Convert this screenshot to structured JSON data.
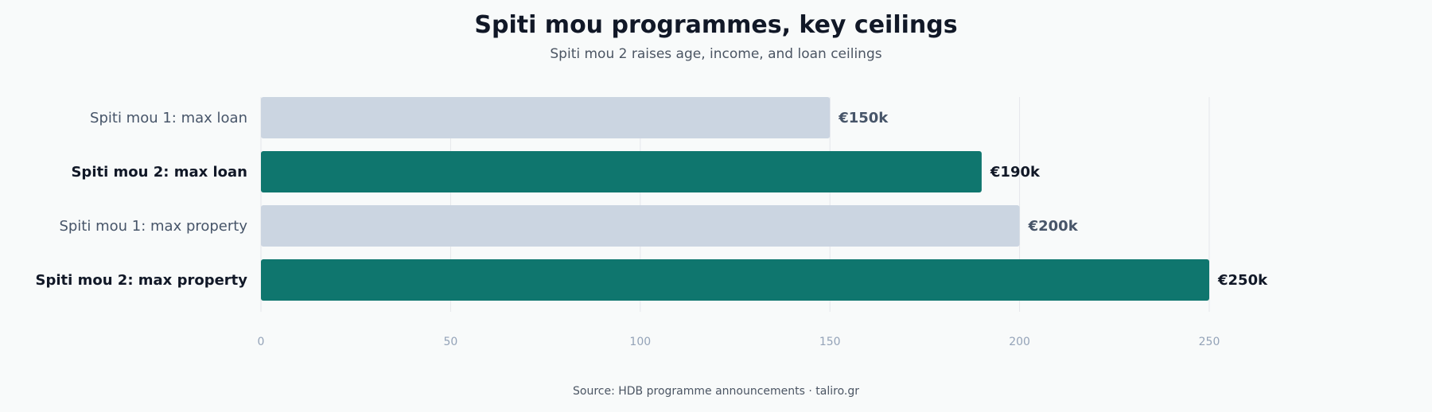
{
  "chart_data": {
    "type": "bar",
    "orientation": "horizontal",
    "title": "Spiti mou programmes, key ceilings",
    "subtitle": "Spiti mou 2 raises age, income, and loan ceilings",
    "source": "Source: HDB programme announcements · taliro.gr",
    "categories": [
      "Spiti mou 1: max loan",
      "Spiti mou 2: max loan",
      "Spiti mou 1: max property",
      "Spiti mou 2: max property"
    ],
    "values": [
      150,
      190,
      200,
      250
    ],
    "value_labels": [
      "€150k",
      "€190k",
      "€200k",
      "€250k"
    ],
    "highlight": [
      false,
      true,
      false,
      true
    ],
    "xlim": [
      0,
      250
    ],
    "x_ticks": [
      "0",
      "50",
      "100",
      "150",
      "200",
      "250"
    ],
    "x_tick_values": [
      0,
      50,
      100,
      150,
      200,
      250
    ],
    "grid": true,
    "colors": {
      "muted_bar": "#cbd5e1",
      "highlight_bar": "#0f766e",
      "muted_label": "#475569",
      "highlight_label": "#111827",
      "grid": "#e5e7eb",
      "tick": "#94a3b8"
    }
  }
}
